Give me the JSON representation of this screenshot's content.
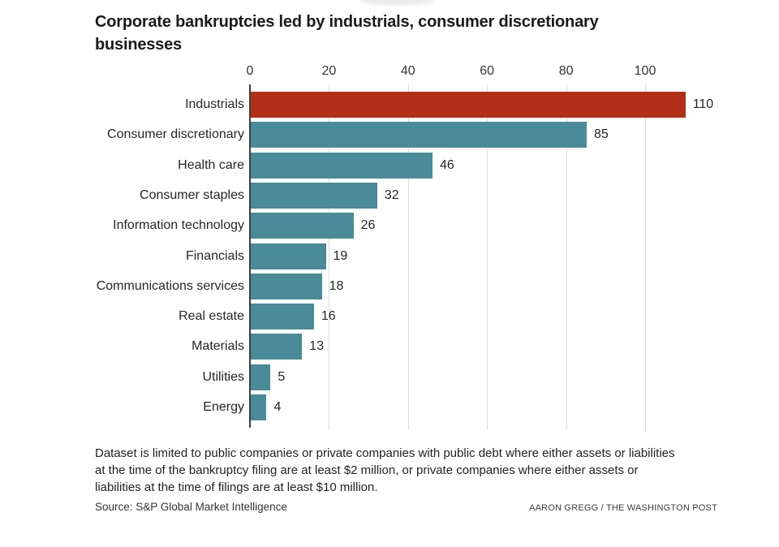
{
  "header": {
    "title_lines": [
      "Corporate bankruptcies led by industrials, consumer discretionary",
      "businesses"
    ]
  },
  "chart_data": {
    "type": "bar",
    "orientation": "horizontal",
    "title": "Corporate bankruptcies led by industrials, consumer discretionary businesses",
    "categories": [
      "Industrials",
      "Consumer discretionary",
      "Health care",
      "Consumer staples",
      "Information technology",
      "Financials",
      "Communications services",
      "Real estate",
      "Materials",
      "Utilities",
      "Energy"
    ],
    "values": [
      110,
      85,
      46,
      32,
      26,
      19,
      18,
      16,
      13,
      5,
      4
    ],
    "value_labels": [
      "110",
      "85",
      "46",
      "32",
      "26",
      "19",
      "18",
      "16",
      "13",
      "5",
      "4"
    ],
    "ticks": [
      0,
      20,
      40,
      60,
      80,
      100
    ],
    "xlim": [
      0,
      110
    ],
    "grid": true,
    "legend": false,
    "highlight_category": "Industrials",
    "colors": {
      "highlight_bar": "#b23017",
      "default_bar": "#4a8b99",
      "axis": "#3f3f3f",
      "gridline": "#dcdcdc"
    }
  },
  "notes": {
    "text": "Dataset is limited to public companies or private companies with public debt where either assets or liabilities at the time of the bankruptcy filing are at least $2 million, or private companies where either assets or liabilities at the time of filings are at least $10 million.",
    "lines": [
      "Dataset is limited to public companies or private companies with public debt where either assets or liabilities",
      "at the time of the bankruptcy filing are at least $2 million, or private companies where either assets or",
      "liabilities at the time of filings are at least $10 million."
    ]
  },
  "source": {
    "label": "Source: S&P Global Market Intelligence",
    "credit": "AARON GREGG / THE WASHINGTON POST"
  }
}
